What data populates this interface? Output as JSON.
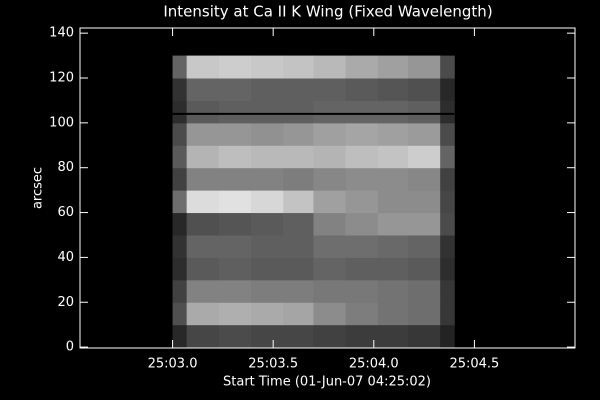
{
  "chart_data": {
    "type": "heatmap",
    "title": "Intensity at Ca II K Wing (Fixed Wavelength)",
    "xlabel": "Start Time (01-Jun-07 04:25:02)",
    "ylabel": "arcsec",
    "xlim": [
      2.54,
      5.0
    ],
    "ylim": [
      -0.4,
      142.3
    ],
    "xticks": [
      {
        "value": 3.0,
        "label": "25:03.0"
      },
      {
        "value": 3.5,
        "label": "25:03.5"
      },
      {
        "value": 4.0,
        "label": "25:04.0"
      },
      {
        "value": 4.5,
        "label": "25:04.5"
      }
    ],
    "yticks": [
      0,
      20,
      40,
      60,
      80,
      100,
      120,
      140
    ],
    "x_edges": [
      3.0,
      3.07,
      3.23,
      3.39,
      3.55,
      3.7,
      3.86,
      4.02,
      4.17,
      4.33,
      4.4
    ],
    "y_edges": [
      0,
      10,
      20,
      30,
      40,
      50,
      60,
      70,
      80,
      90,
      100,
      110,
      120,
      130
    ],
    "z": [
      [
        40,
        70,
        75,
        70,
        70,
        65,
        60,
        60,
        55,
        35
      ],
      [
        80,
        170,
        175,
        170,
        165,
        140,
        125,
        115,
        110,
        55
      ],
      [
        65,
        130,
        130,
        125,
        125,
        120,
        120,
        115,
        110,
        55
      ],
      [
        45,
        90,
        95,
        90,
        90,
        100,
        95,
        95,
        90,
        45
      ],
      [
        50,
        100,
        100,
        95,
        95,
        110,
        110,
        105,
        100,
        50
      ],
      [
        40,
        80,
        85,
        90,
        95,
        130,
        140,
        150,
        150,
        75
      ],
      [
        110,
        220,
        225,
        215,
        195,
        160,
        150,
        140,
        140,
        70
      ],
      [
        65,
        130,
        130,
        130,
        125,
        135,
        140,
        140,
        135,
        65
      ],
      [
        90,
        180,
        190,
        185,
        185,
        180,
        190,
        195,
        205,
        100
      ],
      [
        75,
        150,
        150,
        145,
        150,
        160,
        165,
        160,
        155,
        75
      ],
      [
        45,
        90,
        95,
        95,
        95,
        100,
        100,
        100,
        95,
        45
      ],
      [
        50,
        100,
        100,
        95,
        95,
        95,
        90,
        85,
        80,
        40
      ],
      [
        100,
        200,
        205,
        200,
        195,
        185,
        170,
        160,
        150,
        75
      ]
    ],
    "line_y": 104
  }
}
